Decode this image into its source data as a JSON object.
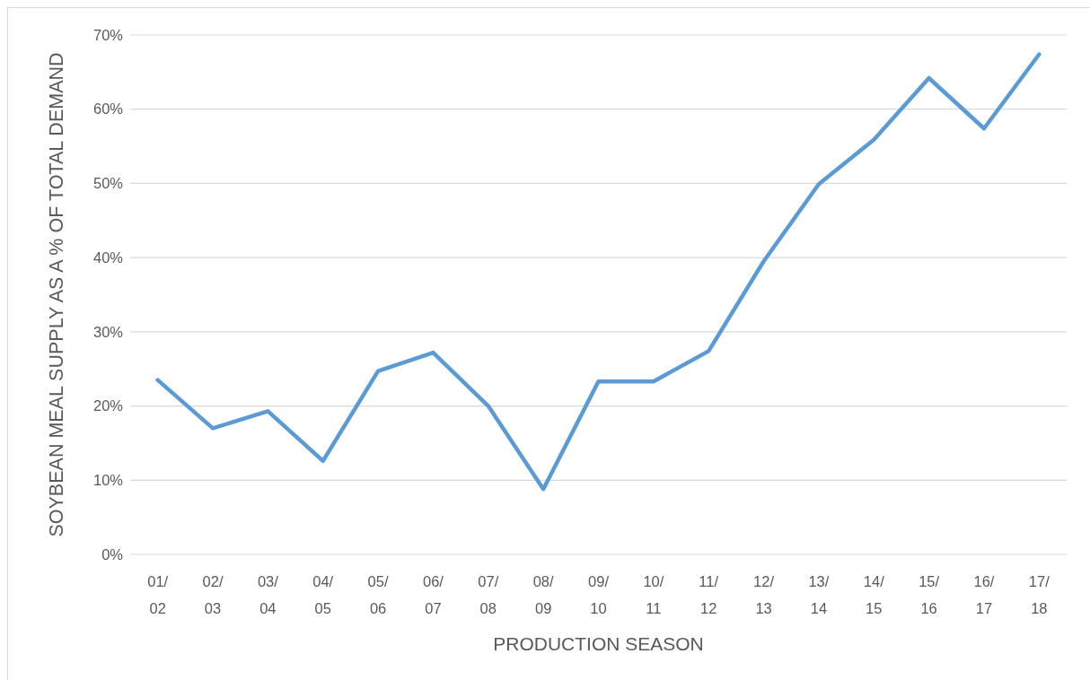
{
  "chart_data": {
    "type": "line",
    "xlabel": "PRODUCTION SEASON",
    "ylabel": "SOYBEAN MEAL SUPPLY AS A % OF TOTAL DEMAND",
    "categories": [
      "01/02",
      "02/03",
      "03/04",
      "04/05",
      "05/06",
      "06/07",
      "07/08",
      "08/09",
      "09/10",
      "10/11",
      "11/12",
      "12/13",
      "13/14",
      "14/15",
      "15/16",
      "16/17",
      "17/18"
    ],
    "series": [
      {
        "color": "#5b9bd5",
        "values": [
          23.5,
          17.0,
          19.3,
          12.6,
          24.7,
          27.2,
          20.0,
          8.8,
          23.3,
          23.3,
          27.4,
          39.5,
          49.9,
          55.9,
          64.2,
          57.4,
          67.4
        ]
      }
    ],
    "ylim": [
      0,
      70
    ],
    "yticks": [
      {
        "value": 0,
        "label": "0%"
      },
      {
        "value": 10,
        "label": "10%"
      },
      {
        "value": 20,
        "label": "20%"
      },
      {
        "value": 30,
        "label": "30%"
      },
      {
        "value": 40,
        "label": "40%"
      },
      {
        "value": 50,
        "label": "50%"
      },
      {
        "value": 60,
        "label": "60%"
      },
      {
        "value": 70,
        "label": "70%"
      }
    ],
    "grid": "y"
  }
}
